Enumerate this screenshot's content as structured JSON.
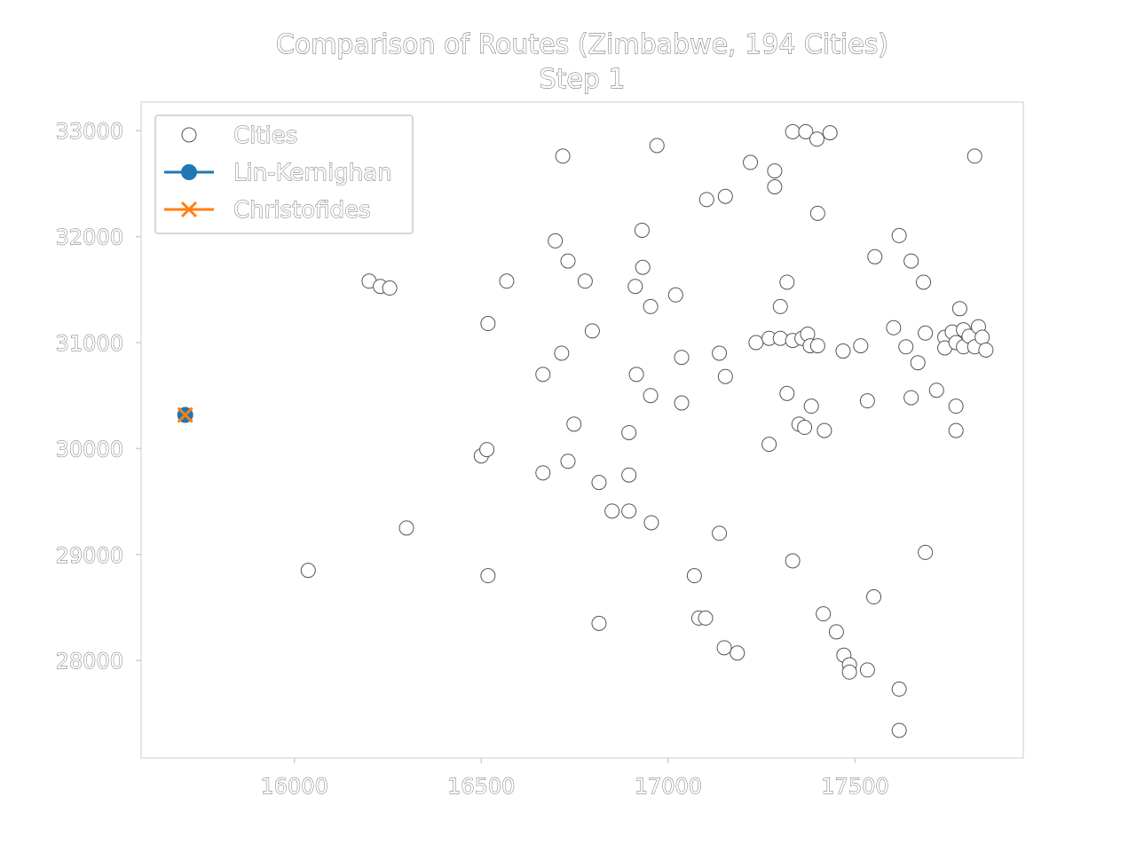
{
  "chart_data": {
    "type": "scatter",
    "title": "Comparison of Routes (Zimbabwe, 194 Cities)",
    "subtitle": "Step 1",
    "xlabel": "",
    "ylabel": "",
    "xlim": [
      15590,
      17950
    ],
    "ylim": [
      27080,
      33270
    ],
    "x_ticks": [
      16000,
      16500,
      17000,
      17500
    ],
    "x_tick_labels": [
      "16000",
      "16500",
      "17000",
      "17500"
    ],
    "y_ticks": [
      28000,
      29000,
      30000,
      31000,
      32000,
      33000
    ],
    "y_tick_labels": [
      "28000",
      "29000",
      "30000",
      "31000",
      "32000",
      "33000"
    ],
    "grid": false,
    "legend_position": "top-left",
    "legend": [
      {
        "label": "Cities",
        "marker": "open-circle"
      },
      {
        "label": "Lin-Kernighan",
        "marker": "filled-circle-line",
        "color": "#1f77b4"
      },
      {
        "label": "Christofides",
        "marker": "x-line",
        "color": "#ff7f0e"
      }
    ],
    "series": [
      {
        "name": "Cities",
        "points": [
          [
            15708,
            30317
          ],
          [
            16037,
            28850
          ],
          [
            16200,
            31580
          ],
          [
            16230,
            31530
          ],
          [
            16255,
            31515
          ],
          [
            16300,
            29250
          ],
          [
            16500,
            29930
          ],
          [
            16515,
            29990
          ],
          [
            16518,
            31180
          ],
          [
            16518,
            28800
          ],
          [
            16568,
            31580
          ],
          [
            16665,
            30700
          ],
          [
            16665,
            29770
          ],
          [
            16698,
            31960
          ],
          [
            16715,
            30900
          ],
          [
            16718,
            32760
          ],
          [
            16732,
            31770
          ],
          [
            16732,
            29880
          ],
          [
            16748,
            30230
          ],
          [
            16778,
            31580
          ],
          [
            16797,
            31110
          ],
          [
            16815,
            29680
          ],
          [
            16815,
            28350
          ],
          [
            16850,
            29410
          ],
          [
            16895,
            30150
          ],
          [
            16895,
            29750
          ],
          [
            16895,
            29410
          ],
          [
            16912,
            31530
          ],
          [
            16915,
            30700
          ],
          [
            16930,
            32060
          ],
          [
            16932,
            31710
          ],
          [
            16953,
            30500
          ],
          [
            16953,
            31340
          ],
          [
            16955,
            29300
          ],
          [
            16970,
            32860
          ],
          [
            17020,
            31450
          ],
          [
            17036,
            30860
          ],
          [
            17036,
            30430
          ],
          [
            17070,
            28800
          ],
          [
            17082,
            28400
          ],
          [
            17100,
            28400
          ],
          [
            17103,
            32350
          ],
          [
            17137,
            30900
          ],
          [
            17137,
            29200
          ],
          [
            17153,
            30680
          ],
          [
            17153,
            32380
          ],
          [
            17150,
            28120
          ],
          [
            17185,
            28070
          ],
          [
            17220,
            32700
          ],
          [
            17235,
            31000
          ],
          [
            17270,
            30040
          ],
          [
            17270,
            31040
          ],
          [
            17285,
            32620
          ],
          [
            17285,
            32470
          ],
          [
            17300,
            31040
          ],
          [
            17300,
            31340
          ],
          [
            17318,
            31570
          ],
          [
            17318,
            30520
          ],
          [
            17333,
            32990
          ],
          [
            17333,
            28940
          ],
          [
            17333,
            31020
          ],
          [
            17350,
            30230
          ],
          [
            17358,
            31040
          ],
          [
            17365,
            30200
          ],
          [
            17368,
            32990
          ],
          [
            17373,
            31080
          ],
          [
            17380,
            30970
          ],
          [
            17383,
            30400
          ],
          [
            17398,
            32920
          ],
          [
            17400,
            32220
          ],
          [
            17400,
            30970
          ],
          [
            17415,
            28440
          ],
          [
            17418,
            30170
          ],
          [
            17433,
            32980
          ],
          [
            17450,
            28270
          ],
          [
            17470,
            28050
          ],
          [
            17468,
            30920
          ],
          [
            17485,
            27960
          ],
          [
            17485,
            27890
          ],
          [
            17515,
            30970
          ],
          [
            17533,
            27910
          ],
          [
            17533,
            30450
          ],
          [
            17550,
            28600
          ],
          [
            17553,
            31810
          ],
          [
            17603,
            31140
          ],
          [
            17618,
            32010
          ],
          [
            17618,
            27730
          ],
          [
            17618,
            27340
          ],
          [
            17636,
            30960
          ],
          [
            17650,
            31770
          ],
          [
            17650,
            30480
          ],
          [
            17668,
            30810
          ],
          [
            17683,
            31570
          ],
          [
            17688,
            31090
          ],
          [
            17688,
            29020
          ],
          [
            17718,
            30550
          ],
          [
            17740,
            31050
          ],
          [
            17740,
            30950
          ],
          [
            17760,
            31100
          ],
          [
            17770,
            31000
          ],
          [
            17770,
            30400
          ],
          [
            17770,
            30170
          ],
          [
            17780,
            31320
          ],
          [
            17790,
            31120
          ],
          [
            17790,
            30960
          ],
          [
            17805,
            31060
          ],
          [
            17820,
            32760
          ],
          [
            17820,
            30960
          ],
          [
            17830,
            31150
          ],
          [
            17840,
            31050
          ],
          [
            17850,
            30930
          ]
        ]
      },
      {
        "name": "Lin-Kernighan",
        "points": [
          [
            15708,
            30317
          ]
        ]
      },
      {
        "name": "Christofides",
        "points": [
          [
            15708,
            30317
          ]
        ]
      }
    ]
  }
}
